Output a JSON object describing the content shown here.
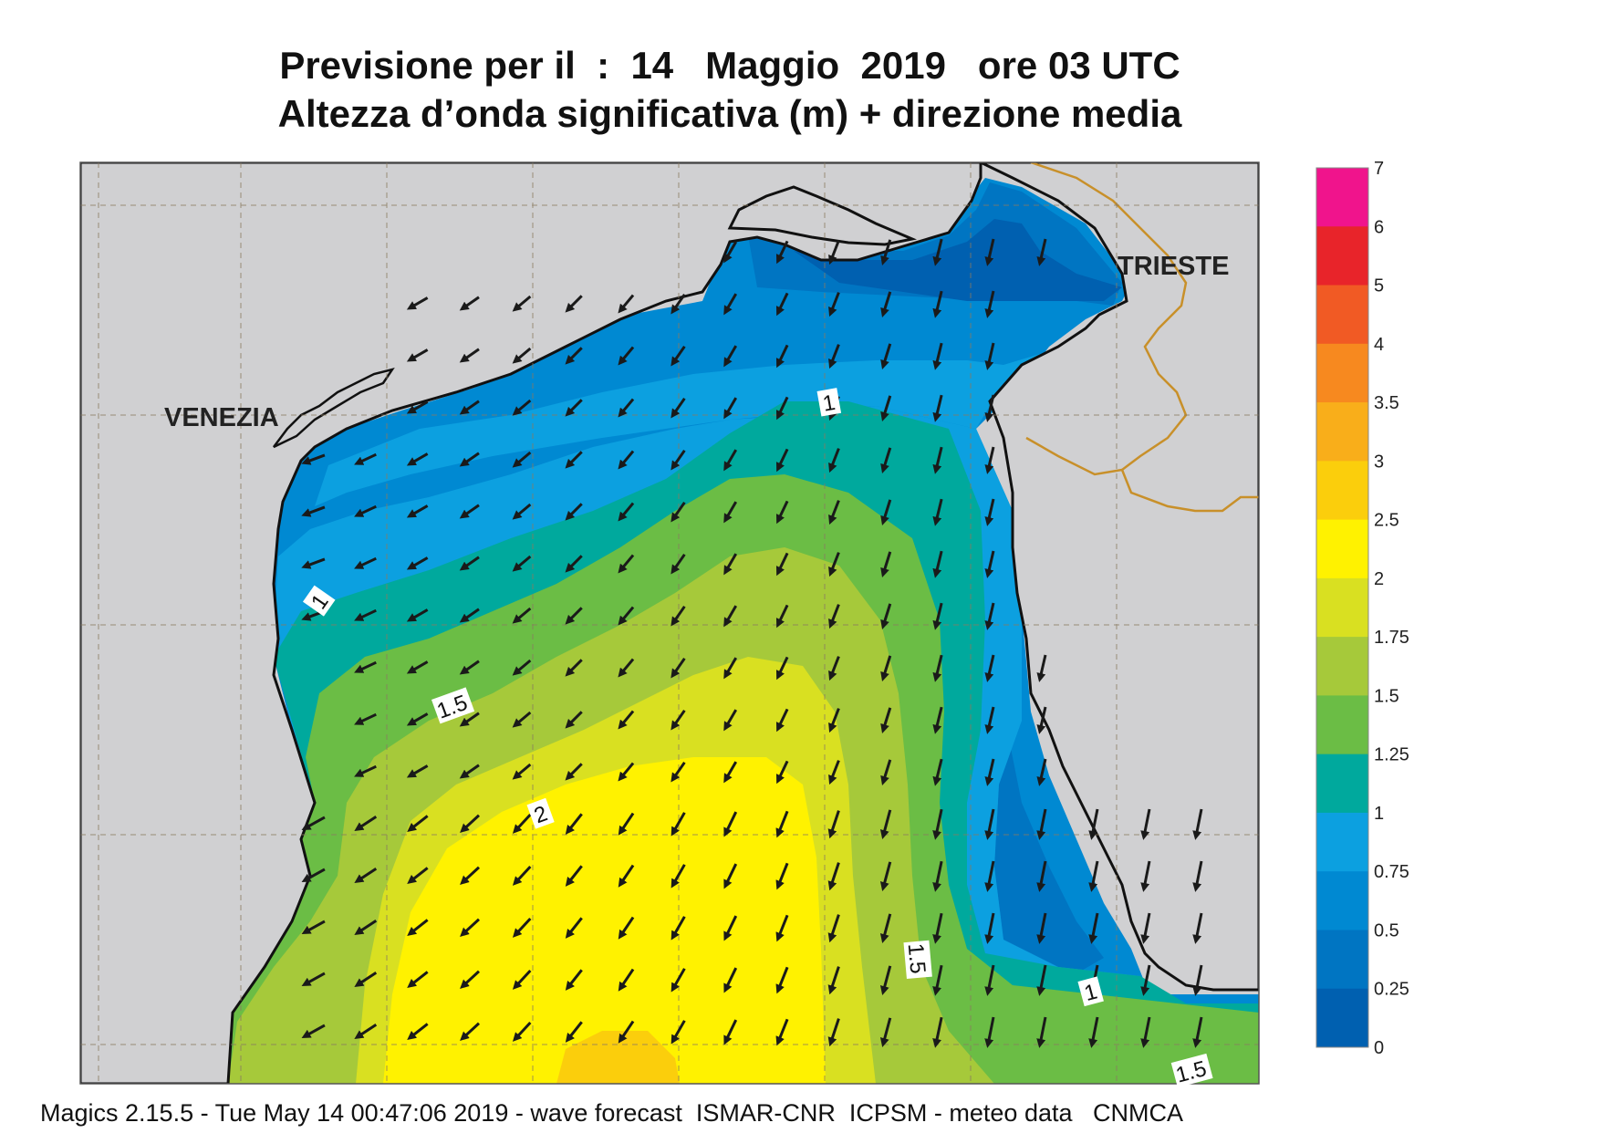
{
  "title_line1": "Previsione per il  :  14   Maggio  2019   ore 03 UTC",
  "title_line2": "Altezza d’onda significativa (m) + direzione media",
  "cities": [
    {
      "name": "VENEZIA"
    },
    {
      "name": "TRIESTE"
    }
  ],
  "contour_labels": [
    "1",
    "1",
    "1.5",
    "2",
    "1.5",
    "1",
    "1.5"
  ],
  "colorbar": {
    "labels": [
      "7",
      "6",
      "5",
      "4",
      "3.5",
      "3",
      "2.5",
      "2",
      "1.75",
      "1.5",
      "1.25",
      "1",
      "0.75",
      "0.5",
      "0.25",
      "0"
    ],
    "colors": [
      "#f0148c",
      "#e8242a",
      "#f15a24",
      "#f7891f",
      "#f9ae1a",
      "#fbce0c",
      "#fff200",
      "#d9e021",
      "#a6c93a",
      "#6bbd45",
      "#00a99d",
      "#0ca0e0",
      "#0089d2",
      "#0075c2",
      "#0060b0"
    ]
  },
  "colors": {
    "land": "#d0d0d2",
    "band_0_25": "#0060b0",
    "band_0_5": "#0075c2",
    "band_0_75": "#0089d2",
    "band_1": "#0ca0e0",
    "band_1_25": "#00a99d",
    "band_1_5": "#6bbd45",
    "band_1_75": "#a6c93a",
    "band_2": "#d9e021",
    "band_2_5": "#fff200",
    "band_3": "#fbce0c",
    "border": "#c8902a"
  },
  "footer": "Magics 2.15.5 - Tue May 14 00:47:06 2019 - wave forecast  ISMAR-CNR  ICPSM - meteo data   CNMCA"
}
